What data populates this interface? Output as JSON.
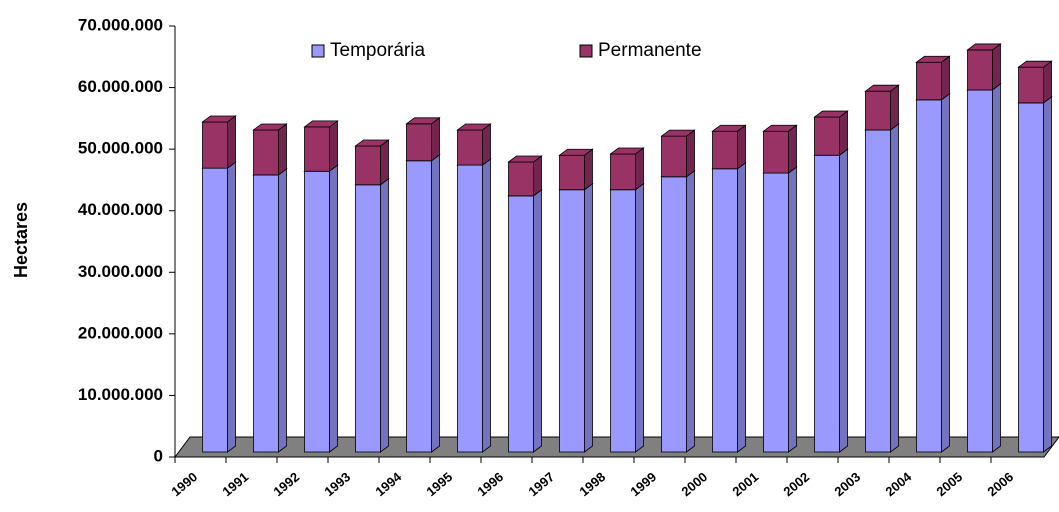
{
  "chart_data": {
    "type": "bar3d_stacked",
    "y_label": "Hectares",
    "categories": [
      "1990",
      "1991",
      "1992",
      "1993",
      "1994",
      "1995",
      "1996",
      "1997",
      "1998",
      "1999",
      "2000",
      "2001",
      "2002",
      "2003",
      "2004",
      "2005",
      "2006"
    ],
    "series": [
      {
        "name": "Temporária",
        "color": "#9999ff",
        "values": [
          46100000,
          45000000,
          45600000,
          43400000,
          47300000,
          46600000,
          41600000,
          42600000,
          42600000,
          44700000,
          46000000,
          45300000,
          48200000,
          52300000,
          57200000,
          58800000,
          56700000
        ]
      },
      {
        "name": "Permanente",
        "color": "#993366",
        "values": [
          7500000,
          7300000,
          7200000,
          6300000,
          6000000,
          5700000,
          5500000,
          5600000,
          5800000,
          6600000,
          6100000,
          6800000,
          6200000,
          6300000,
          6100000,
          6500000,
          5800000
        ]
      }
    ],
    "ylim": [
      0,
      70000000
    ],
    "yticks": [
      0,
      {
        "value": 10000000,
        "label": "10.000.000"
      },
      {
        "value": 20000000,
        "label": "20.000.000"
      },
      {
        "value": 30000000,
        "label": "30.000.000"
      },
      {
        "value": 40000000,
        "label": "40.000.000"
      },
      {
        "value": 50000000,
        "label": "50.000.000"
      },
      {
        "value": 60000000,
        "label": "60.000.000"
      },
      {
        "value": 70000000,
        "label": "70.000.000"
      }
    ]
  }
}
